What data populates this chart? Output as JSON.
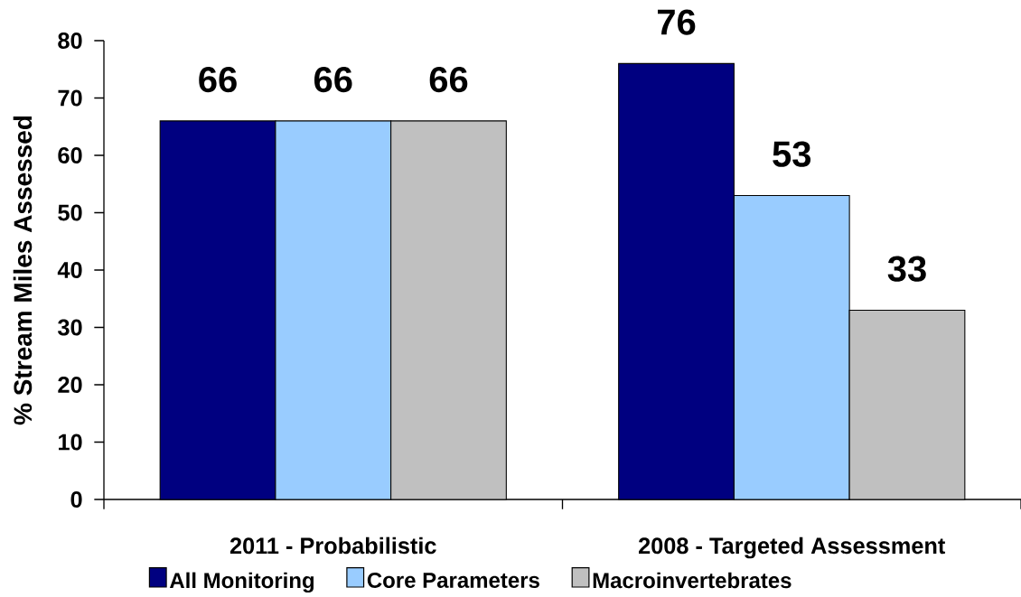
{
  "chart_data": {
    "type": "bar",
    "ylabel": "% Stream Miles Assessed",
    "categories": [
      "2011 - Probabilistic",
      "2008 - Targeted Assessment"
    ],
    "series": [
      {
        "name": "All Monitoring",
        "color": "#000080",
        "values": [
          66,
          76
        ]
      },
      {
        "name": "Core Parameters",
        "color": "#99ccff",
        "values": [
          66,
          53
        ]
      },
      {
        "name": "Macroinvertebrates",
        "color": "#c0c0c0",
        "values": [
          66,
          33
        ]
      }
    ],
    "ylim": [
      0,
      80
    ],
    "yticks": [
      0,
      10,
      20,
      30,
      40,
      50,
      60,
      70,
      80
    ],
    "data_labels": true,
    "legend": "bottom"
  }
}
